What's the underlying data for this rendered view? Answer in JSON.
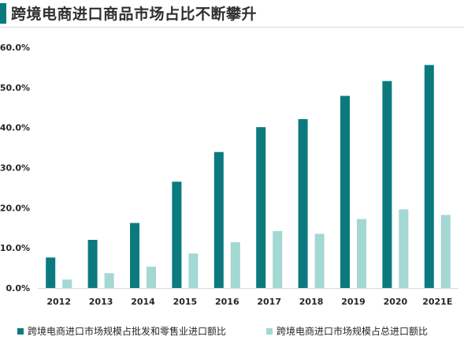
{
  "title": "跨境电商进口商品市场占比不断攀升",
  "colors": {
    "accent": "#0b7a7f",
    "series_a": "#0b7a7f",
    "series_b": "#a3d8d3",
    "text": "#262626",
    "gridline": "#d9d9d9"
  },
  "chart_data": {
    "type": "bar",
    "title": "",
    "xlabel": "",
    "ylabel": "",
    "categories": [
      "2012",
      "2013",
      "2014",
      "2015",
      "2016",
      "2017",
      "2018",
      "2019",
      "2020",
      "2021E"
    ],
    "series": [
      {
        "name": "跨境电商进口市场规模占批发和零售业进口额比",
        "values": [
          7.6,
          12.0,
          16.2,
          26.5,
          33.9,
          40.1,
          42.1,
          47.9,
          51.6,
          55.6
        ]
      },
      {
        "name": "跨境电商进口市场规模占总进口额比",
        "values": [
          2.1,
          3.7,
          5.3,
          8.6,
          11.4,
          14.2,
          13.5,
          17.2,
          19.6,
          18.2
        ]
      }
    ],
    "yticks": [
      "0.0%",
      "10.0%",
      "20.0%",
      "30.0%",
      "40.0%",
      "50.0%",
      "60.0%"
    ],
    "ylim": [
      0,
      60
    ],
    "grid": false,
    "legend": "bottom"
  }
}
